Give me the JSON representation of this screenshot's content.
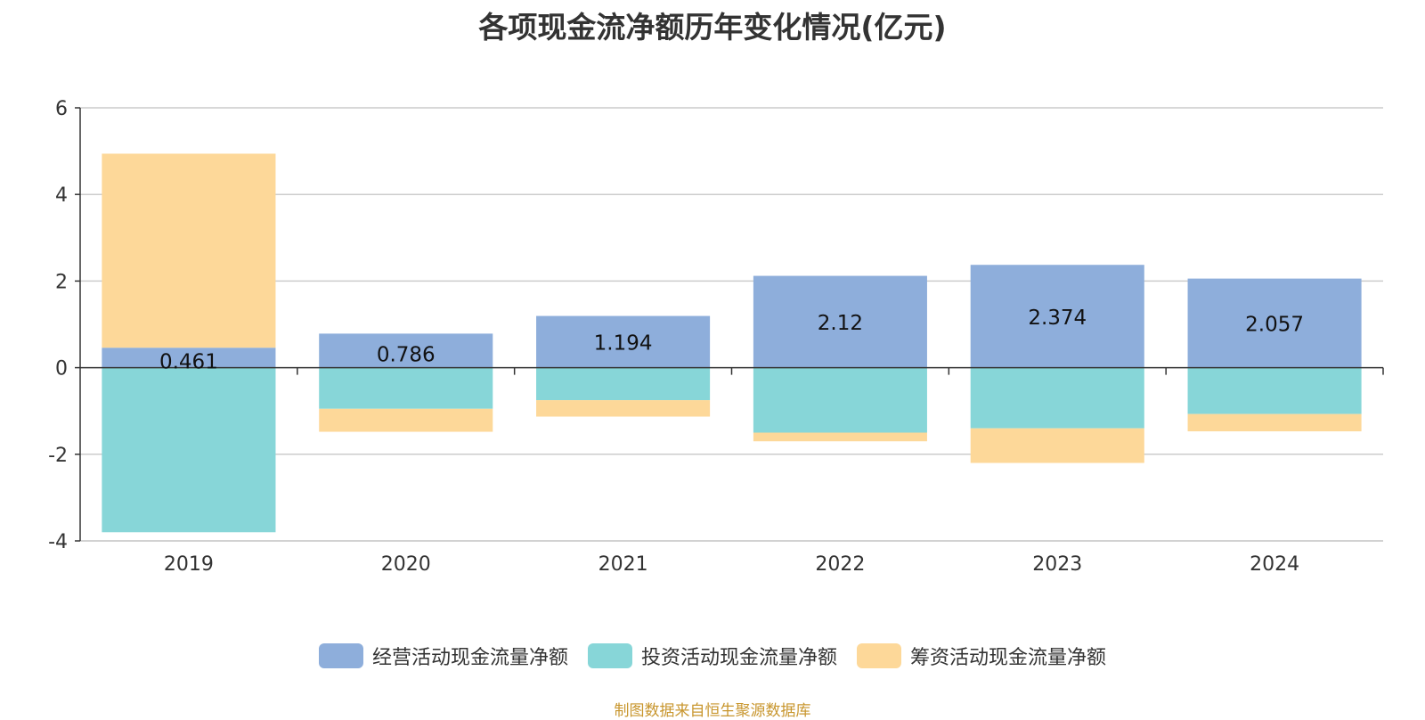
{
  "chart_data": {
    "type": "bar",
    "stacked": true,
    "title": "各项现金流净额历年变化情况(亿元)",
    "categories": [
      "2019",
      "2020",
      "2021",
      "2022",
      "2023",
      "2024"
    ],
    "ylim": [
      -4,
      6
    ],
    "yticks": [
      -4,
      -2,
      0,
      2,
      4,
      6
    ],
    "grid": true,
    "legend_position": "bottom",
    "series": [
      {
        "name": "经营活动现金流量净额",
        "color": "#8eaedb",
        "values": [
          0.461,
          0.786,
          1.194,
          2.12,
          2.374,
          2.057
        ],
        "data_labels": [
          "0.461",
          "0.786",
          "1.194",
          "2.12",
          "2.374",
          "2.057"
        ]
      },
      {
        "name": "投资活动现金流量净额",
        "color": "#87d6d8",
        "values": [
          -3.8,
          -0.95,
          -0.75,
          -1.5,
          -1.4,
          -1.07
        ]
      },
      {
        "name": "筹资活动现金流量净额",
        "color": "#fdd899",
        "values": [
          4.48,
          -0.53,
          -0.38,
          -0.2,
          -0.8,
          -0.4
        ]
      }
    ]
  },
  "source_note": "制图数据来自恒生聚源数据库",
  "source_note_color": "#c8962e"
}
